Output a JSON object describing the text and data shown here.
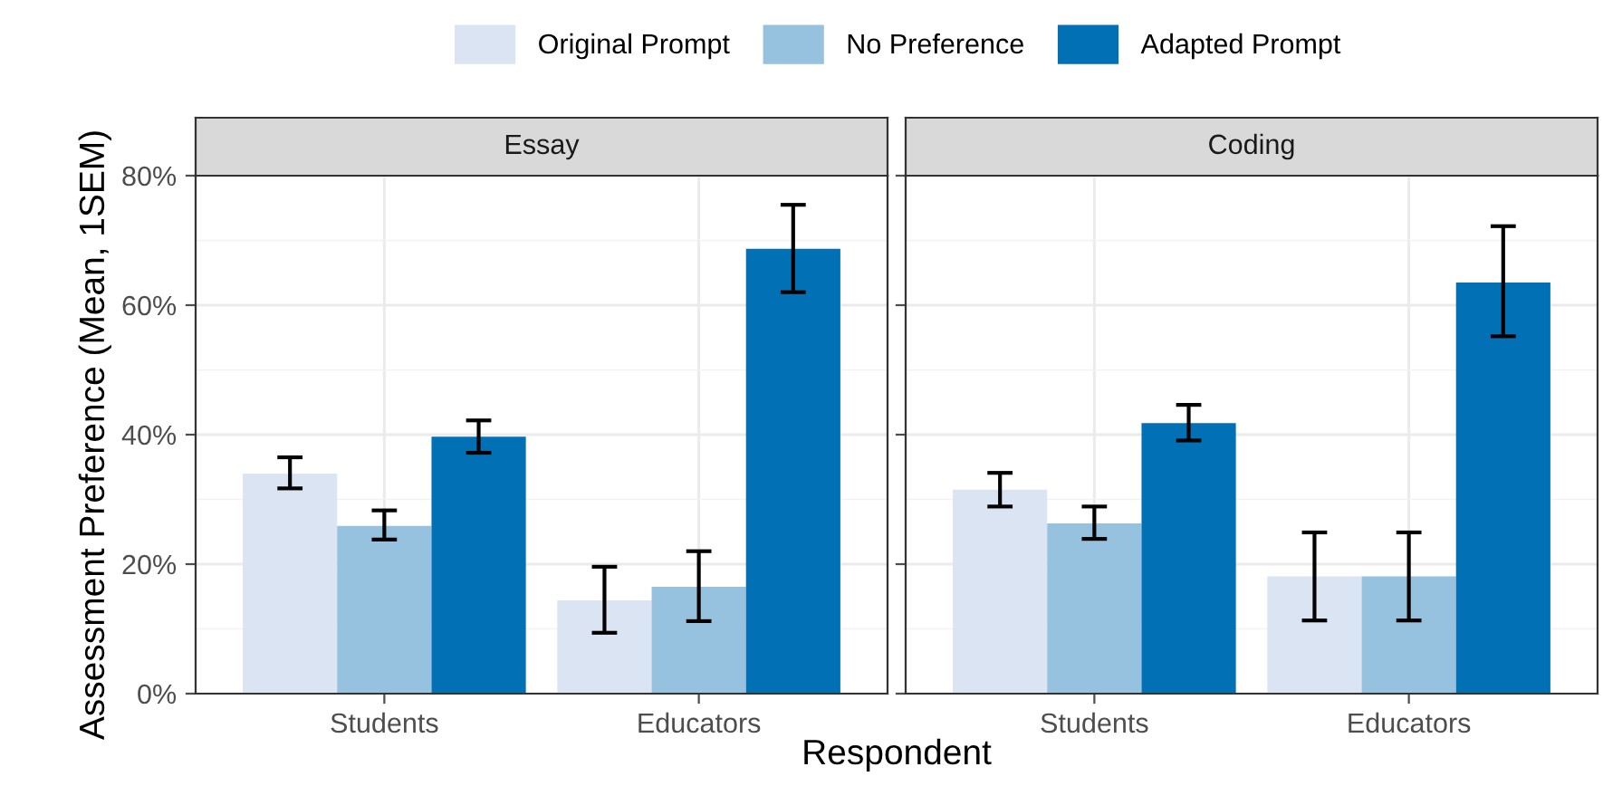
{
  "chart_data": [
    {
      "type": "bar",
      "title": "Essay",
      "xlabel": "Respondent",
      "ylabel": "Assessment Preference (Mean, 1SEM)",
      "categories": [
        "Students",
        "Educators"
      ],
      "series": [
        {
          "name": "Original Prompt",
          "color": "#dbe4f3",
          "values": [
            34.0,
            14.4
          ],
          "errors": [
            [
              31.7,
              36.5
            ],
            [
              9.4,
              19.6
            ]
          ]
        },
        {
          "name": "No Preference",
          "color": "#96c1df",
          "values": [
            25.9,
            16.5
          ],
          "errors": [
            [
              23.8,
              28.3
            ],
            [
              11.2,
              22.0
            ]
          ]
        },
        {
          "name": "Adapted Prompt",
          "color": "#0270b5",
          "values": [
            39.7,
            68.7
          ],
          "errors": [
            [
              37.2,
              42.2
            ],
            [
              62.0,
              75.5
            ]
          ]
        }
      ],
      "ylim": [
        0,
        80
      ],
      "yticks": [
        {
          "value": 0,
          "label": "0%"
        },
        {
          "value": 20,
          "label": "20%"
        },
        {
          "value": 40,
          "label": "40%"
        },
        {
          "value": 60,
          "label": "60%"
        },
        {
          "value": 80,
          "label": "80%"
        }
      ],
      "grid": true,
      "legend": "top"
    },
    {
      "type": "bar",
      "title": "Coding",
      "categories": [
        "Students",
        "Educators"
      ],
      "series": [
        {
          "color": "#dbe4f3",
          "values": [
            31.5,
            18.1
          ],
          "errors": [
            [
              28.9,
              34.1
            ],
            [
              11.3,
              24.9
            ]
          ]
        },
        {
          "color": "#96c1df",
          "values": [
            26.3,
            18.1
          ],
          "errors": [
            [
              23.9,
              28.9
            ],
            [
              11.3,
              24.9
            ]
          ]
        },
        {
          "color": "#0270b5",
          "values": [
            41.8,
            63.5
          ],
          "errors": [
            [
              39.1,
              44.6
            ],
            [
              55.2,
              72.2
            ]
          ]
        }
      ],
      "ylim": [
        0,
        80
      ],
      "grid": true,
      "tick_labels": "x"
    }
  ]
}
